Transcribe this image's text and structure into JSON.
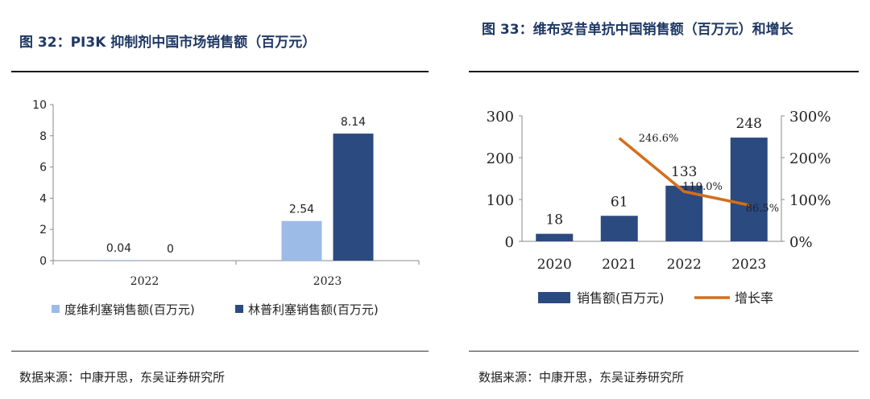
{
  "left": {
    "title": "图 32：PI3K 抑制剂中国市场销售额（百万元）",
    "source": "数据来源：中康开思，东吴证券研究所",
    "colors": {
      "series1": "#9dbbe7",
      "series2": "#2b4a80"
    }
  },
  "right": {
    "title": "图 33：维布妥昔单抗中国销售额（百万元）和增长",
    "source": "数据来源：中康开思，东吴证券研究所",
    "colors": {
      "bar": "#2b4a80",
      "line": "#d46e1a"
    }
  },
  "chart_data": [
    {
      "type": "bar",
      "categories": [
        "2022",
        "2023"
      ],
      "series": [
        {
          "name": "度维利塞销售额(百万元)",
          "values": [
            0.04,
            2.54
          ],
          "labels": [
            "0.04",
            "2.54"
          ]
        },
        {
          "name": "林普利塞销售额(百万元)",
          "values": [
            0,
            8.14
          ],
          "labels": [
            "0",
            "8.14"
          ]
        }
      ],
      "ylim": [
        0,
        10
      ],
      "yticks": [
        "0",
        "2",
        "4",
        "6",
        "8",
        "10"
      ],
      "legend": "bottom"
    },
    {
      "type": "bar",
      "categories": [
        "2020",
        "2021",
        "2022",
        "2023"
      ],
      "series": [
        {
          "name": "销售额(百万元)",
          "type": "bar",
          "axis": "left",
          "values": [
            18,
            61,
            133,
            248
          ],
          "labels": [
            "18",
            "61",
            "133",
            "248"
          ]
        },
        {
          "name": "增长率",
          "type": "line",
          "axis": "right",
          "values": [
            null,
            246.6,
            119.0,
            86.5
          ],
          "labels": [
            "",
            "246.6%",
            "119.0%",
            "86.5%"
          ]
        }
      ],
      "ylim": [
        0,
        300
      ],
      "yticks": [
        "0",
        "100",
        "200",
        "300"
      ],
      "y2lim": [
        0,
        300
      ],
      "y2ticks": [
        "0%",
        "100%",
        "200%",
        "300%"
      ],
      "legend": "bottom"
    }
  ]
}
